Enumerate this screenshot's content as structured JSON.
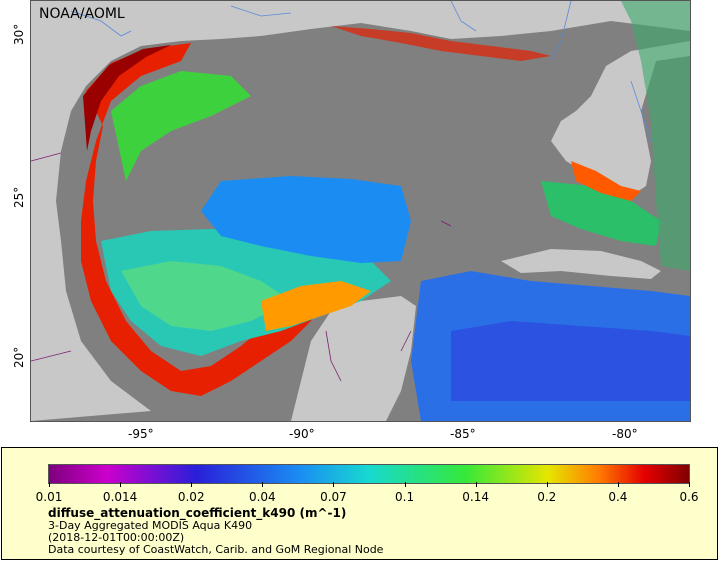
{
  "map": {
    "credit": "NOAA/AOML",
    "lat_ticks": [
      "30°",
      "25°",
      "20°"
    ],
    "lon_ticks": [
      "-95°",
      "-90°",
      "-85°",
      "-80°"
    ],
    "land_color": "#c8c8c8",
    "nodata_color": "#808080",
    "border_color": "#7a1f6e",
    "river_color": "#5a8ad6"
  },
  "legend": {
    "ticks": [
      "0.01",
      "0.014",
      "0.02",
      "0.04",
      "0.07",
      "0.1",
      "0.14",
      "0.2",
      "0.4",
      "0.6"
    ],
    "variable": "diffuse_attenuation_coefficient_k490 (m^-1)",
    "line1": "3-Day Aggregated MODIS Aqua K490",
    "line2": "(2018-12-01T00:00:00Z)",
    "line3": "Data courtesy of CoastWatch, Carib. and GoM Regional Node"
  }
}
